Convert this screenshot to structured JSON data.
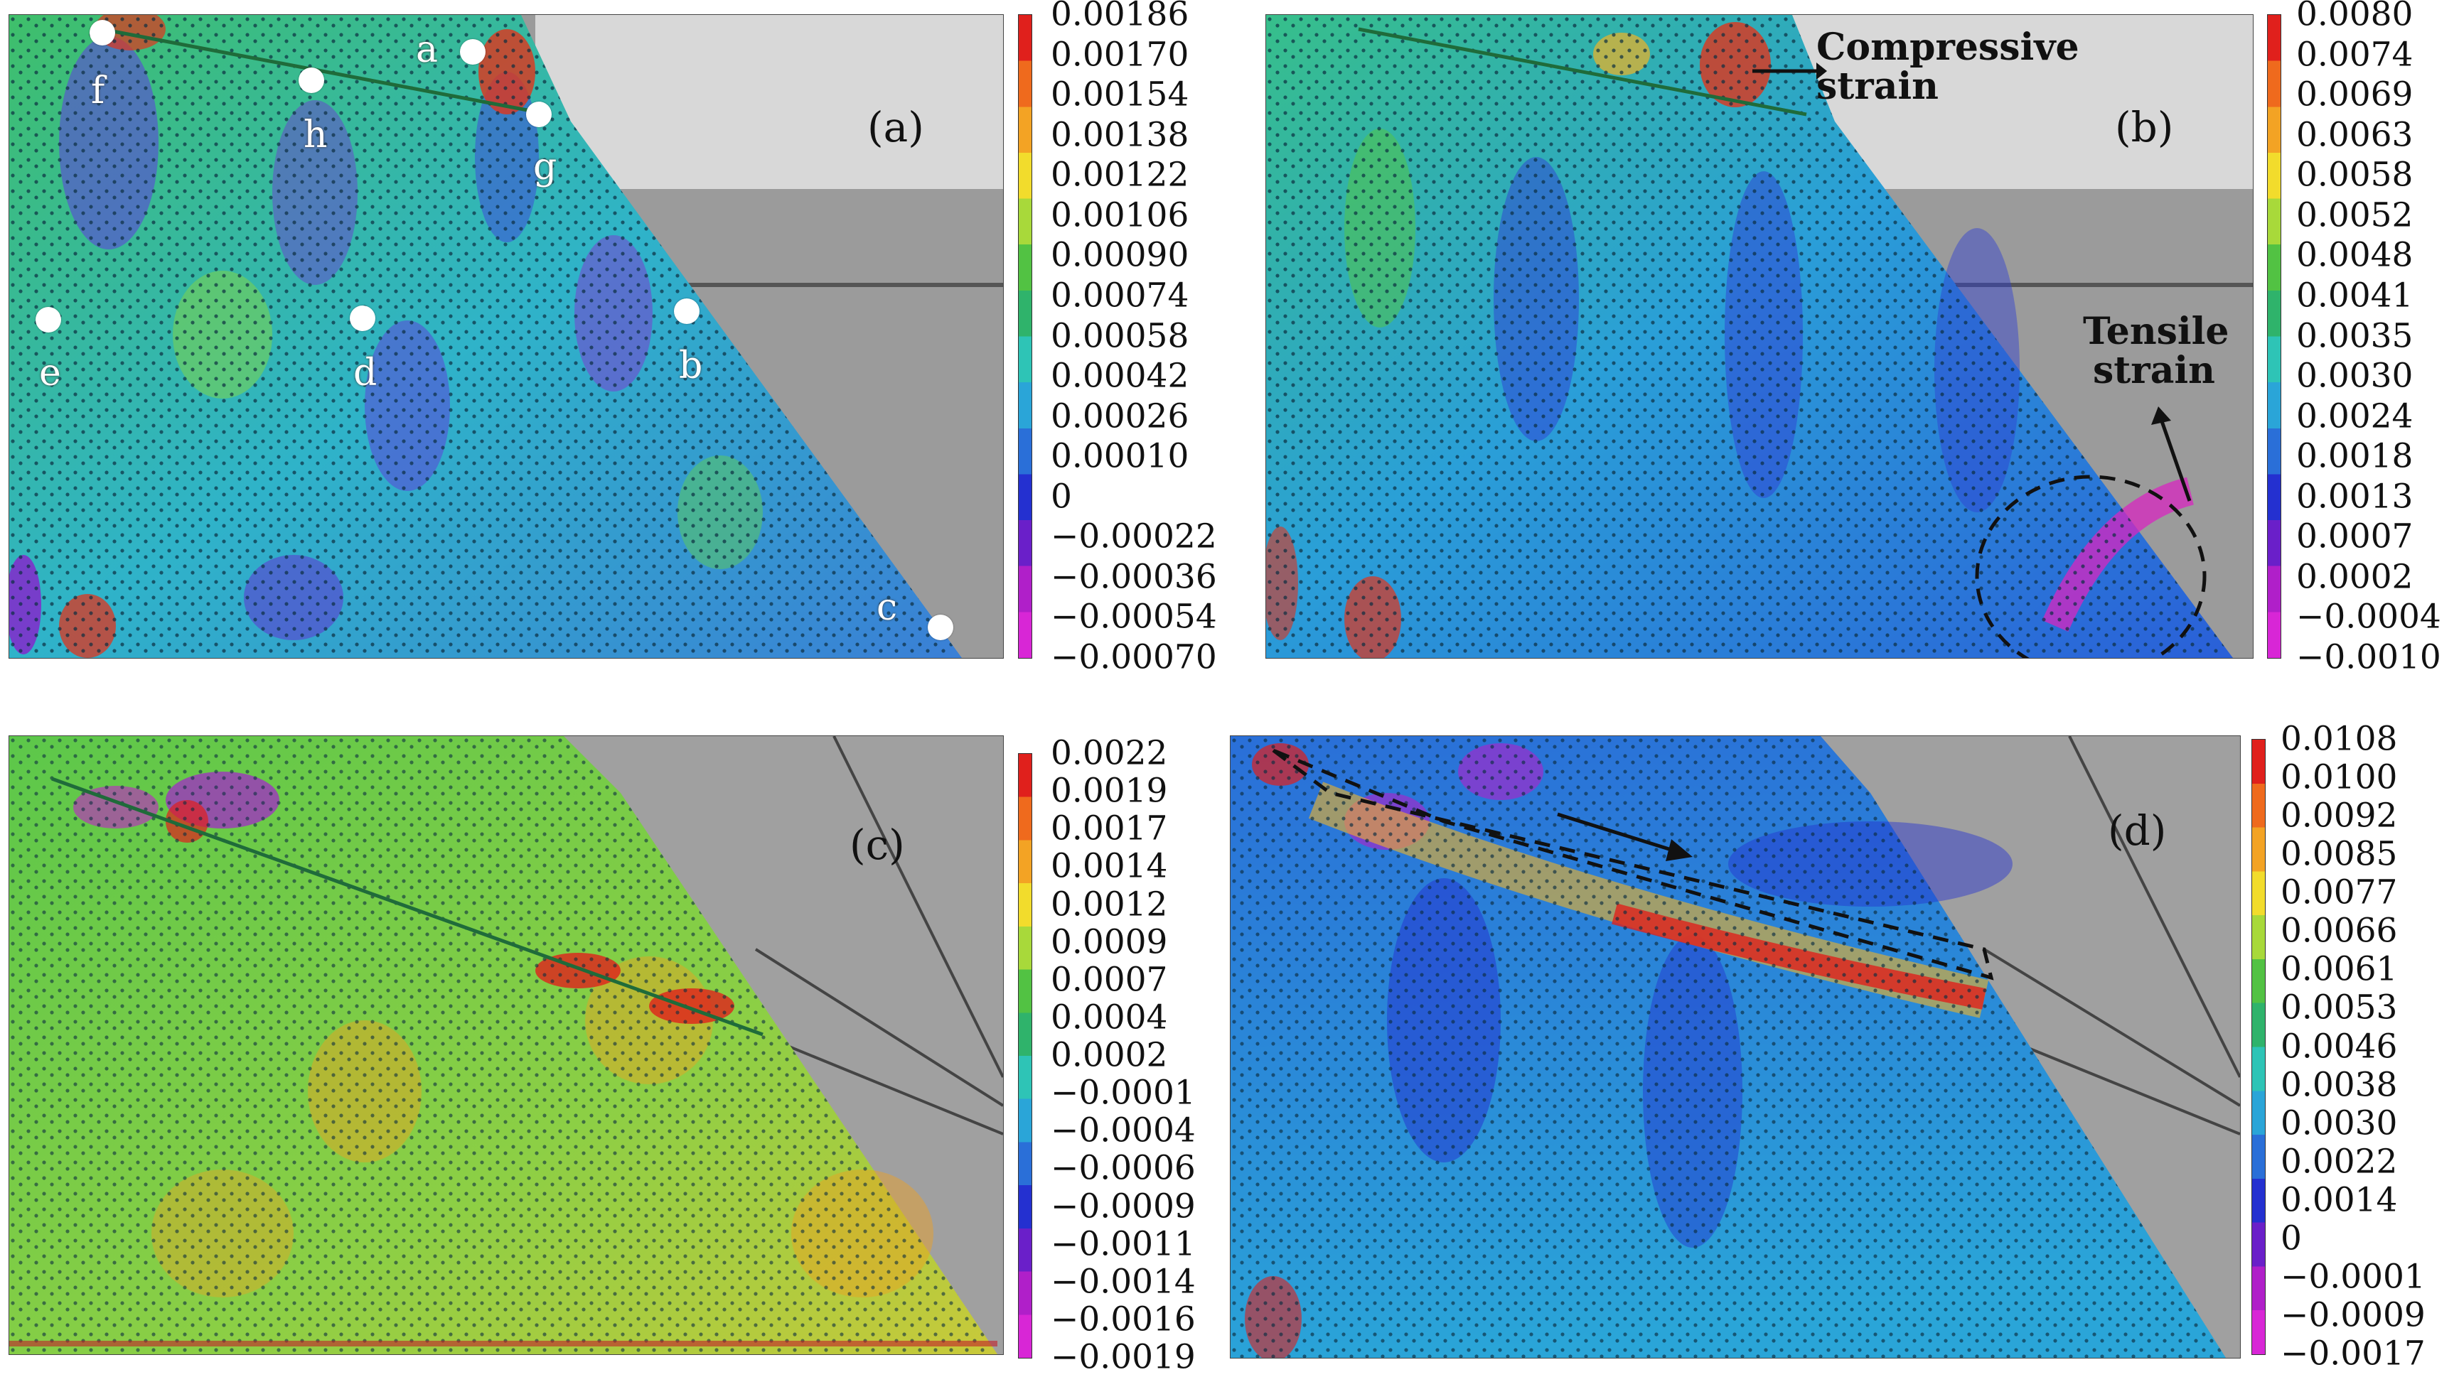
{
  "panels": [
    {
      "label": "(a)",
      "ticks": [
        "0.00186",
        "0.00170",
        "0.00154",
        "0.00138",
        "0.00122",
        "0.00106",
        "0.00090",
        "0.00074",
        "0.00058",
        "0.00042",
        "0.00026",
        "0.00010",
        "0",
        "−0.00022",
        "−0.00036",
        "−0.00054",
        "−0.00070"
      ],
      "points": [
        {
          "label": "a"
        },
        {
          "label": "b"
        },
        {
          "label": "c"
        },
        {
          "label": "d"
        },
        {
          "label": "e"
        },
        {
          "label": "f"
        },
        {
          "label": "g"
        },
        {
          "label": "h"
        }
      ]
    },
    {
      "label": "(b)",
      "ticks": [
        "0.0080",
        "0.0074",
        "0.0069",
        "0.0063",
        "0.0058",
        "0.0052",
        "0.0048",
        "0.0041",
        "0.0035",
        "0.0030",
        "0.0024",
        "0.0018",
        "0.0013",
        "0.0007",
        "0.0002",
        "−0.0004",
        "−0.0010"
      ],
      "annotations": {
        "compressive": "Compressive strain",
        "tensile": "Tensile strain"
      }
    },
    {
      "label": "(c)",
      "ticks": [
        "0.0022",
        "0.0019",
        "0.0017",
        "0.0014",
        "0.0012",
        "0.0009",
        "0.0007",
        "0.0004",
        "0.0002",
        "−0.0001",
        "−0.0004",
        "−0.0006",
        "−0.0009",
        "−0.0011",
        "−0.0014",
        "−0.0016",
        "−0.0019"
      ]
    },
    {
      "label": "(d)",
      "ticks": [
        "0.0108",
        "0.0100",
        "0.0092",
        "0.0085",
        "0.0077",
        "0.0066",
        "0.0061",
        "0.0053",
        "0.0046",
        "0.0038",
        "0.0030",
        "0.0022",
        "0.0014",
        "0",
        "−0.0001",
        "−0.0009",
        "−0.0017"
      ]
    }
  ],
  "colorbar_colors": [
    "#e0201c",
    "#ef6a1d",
    "#f3a324",
    "#f2dc2c",
    "#a8d93a",
    "#52c243",
    "#2fb36b",
    "#2ec4b6",
    "#2aa5d8",
    "#2a6fd8",
    "#2430d0",
    "#6a1fc9",
    "#b01fc9",
    "#d826d6"
  ]
}
